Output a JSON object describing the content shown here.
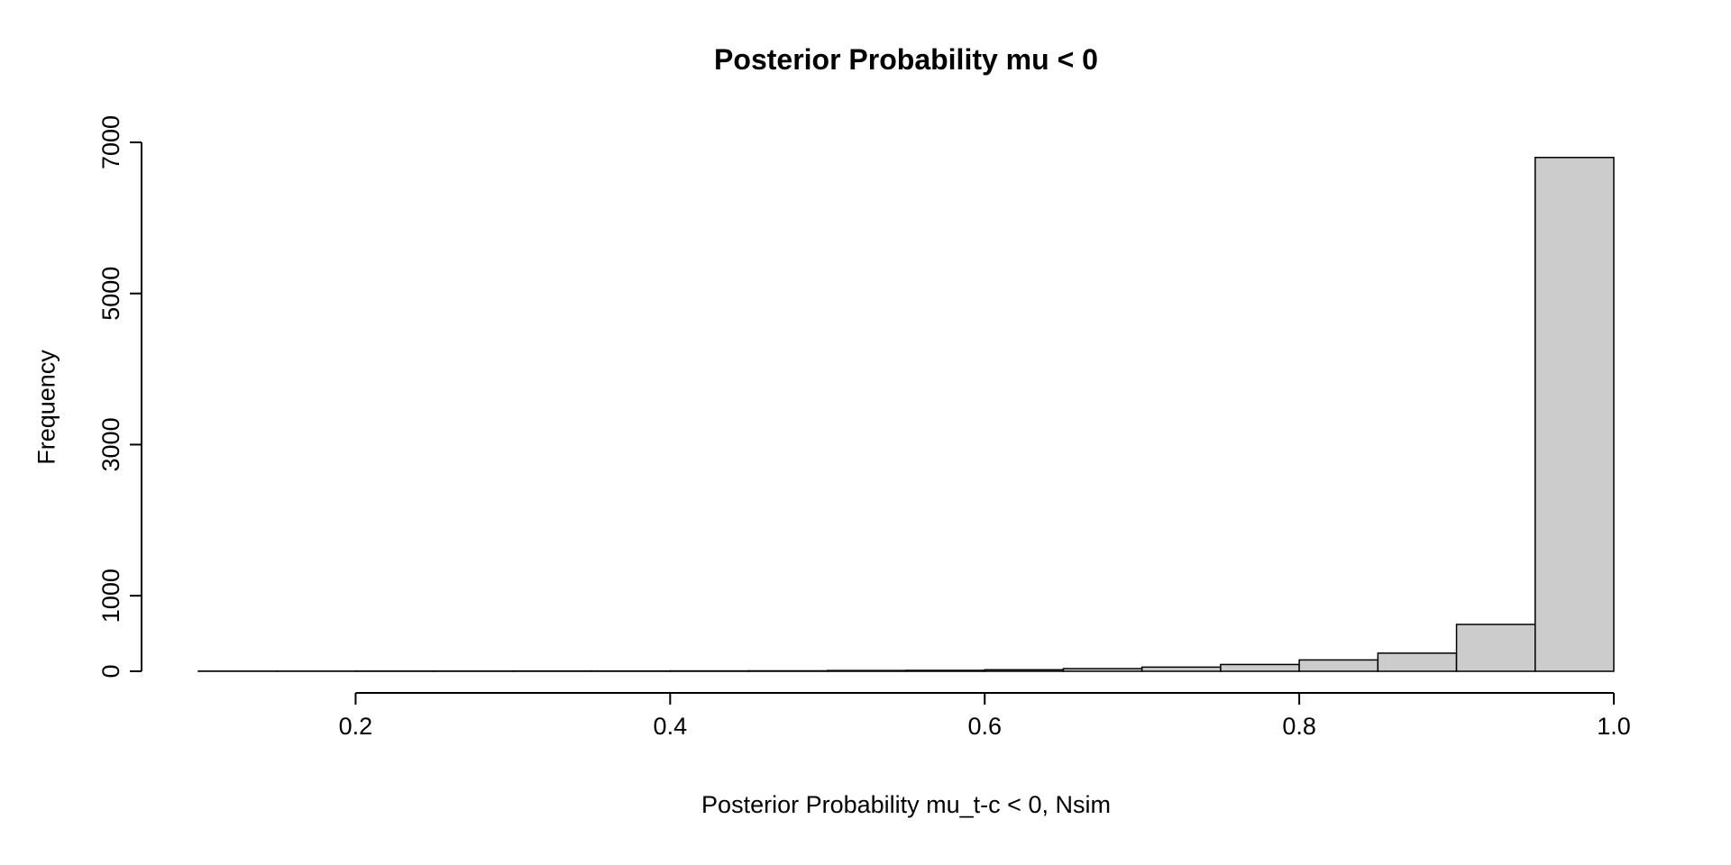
{
  "page": {
    "background": "#ffffff"
  },
  "chart_data": {
    "type": "bar",
    "subtype": "histogram",
    "title": "Posterior Probability mu < 0",
    "xlabel": "Posterior Probability mu_t-c < 0, Nsim",
    "ylabel": "Frequency",
    "bin_start": 0.1,
    "bin_width": 0.05,
    "bin_edges": [
      0.1,
      0.15,
      0.2,
      0.25,
      0.3,
      0.35,
      0.4,
      0.45,
      0.5,
      0.55,
      0.6,
      0.65,
      0.7,
      0.75,
      0.8,
      0.85,
      0.9,
      0.95,
      1.0
    ],
    "counts": [
      2,
      2,
      3,
      3,
      4,
      4,
      5,
      6,
      10,
      12,
      20,
      35,
      55,
      90,
      150,
      240,
      620,
      6800
    ],
    "xlim": [
      0.1,
      1.0
    ],
    "ylim": [
      0,
      7000
    ],
    "x_ticks": [
      0.2,
      0.4,
      0.6,
      0.8,
      1.0
    ],
    "x_tick_labels": [
      "0.2",
      "0.4",
      "0.6",
      "0.8",
      "1.0"
    ],
    "y_ticks": [
      0,
      1000,
      3000,
      5000,
      7000
    ],
    "y_tick_labels": [
      "0",
      "1000",
      "3000",
      "5000",
      "7000"
    ],
    "bar_fill": "#cccccc",
    "bar_stroke": "#000000",
    "axis_color": "#000000",
    "grid": false,
    "legend": "none"
  }
}
